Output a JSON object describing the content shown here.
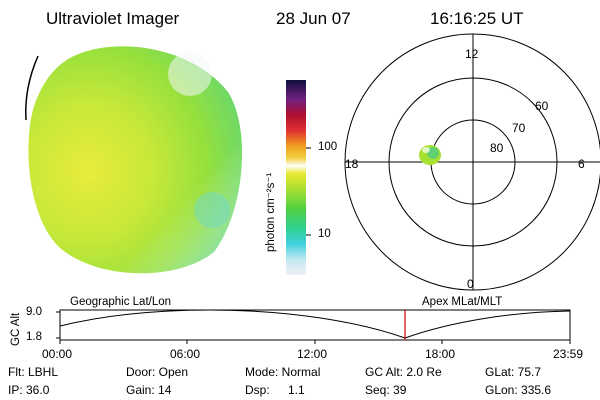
{
  "header": {
    "title": "Ultraviolet Imager",
    "date": "28 Jun 07",
    "time": "16:16:25 UT"
  },
  "colorbar": {
    "unit_label": "photon cm⁻²s⁻¹",
    "ticks": [
      "100",
      "10"
    ]
  },
  "polar": {
    "mlt_labels": [
      "12",
      "18",
      "6",
      "0"
    ],
    "lat_labels": [
      "60",
      "70",
      "80"
    ]
  },
  "timeline": {
    "axis_label": "GC Alt",
    "y_ticks": [
      "9.0",
      "1.8"
    ],
    "left_title": "Geographic Lat/Lon",
    "right_title": "Apex MLat/MLT",
    "x_ticks": [
      "00:00",
      "06:00",
      "12:00",
      "18:00",
      "23:59"
    ],
    "current_marker_color": "#cc0000"
  },
  "info": {
    "flt": "Flt: LBHL",
    "ip": "IP: 36.0",
    "door": "Door: Open",
    "gain": "Gain: 14",
    "mode": "Mode: Normal",
    "dsp_label": "Dsp:",
    "dsp_value": "1.1",
    "gcalt": "GC Alt: 2.0 Re",
    "seq": "Seq: 39",
    "glat": "GLat:  75.7",
    "glon": "GLon: 335.6"
  }
}
